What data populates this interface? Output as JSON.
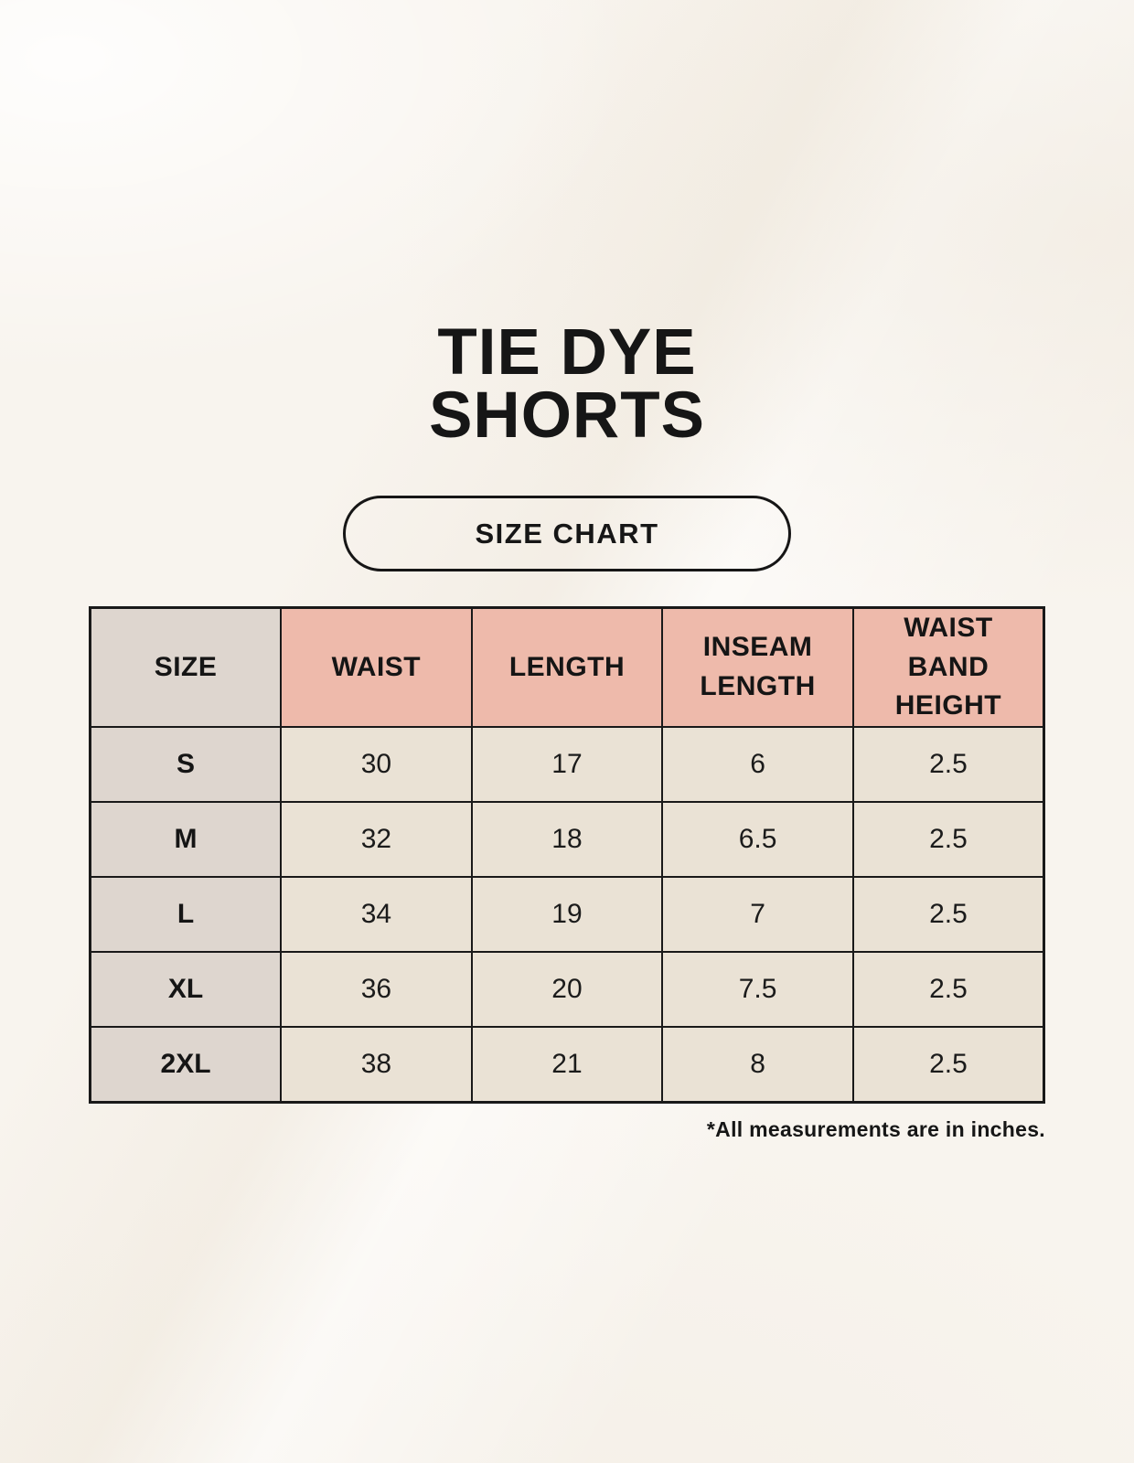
{
  "page": {
    "title": {
      "line1": "TIE DYE",
      "line2": "SHORTS"
    },
    "badge": {
      "label": "SIZE CHART"
    },
    "footnote": "*All measurements are in inches."
  },
  "table": {
    "columns": [
      "SIZE",
      "WAIST",
      "LENGTH",
      "INSEAM LENGTH",
      "WAIST BAND HEIGHT"
    ],
    "rows": [
      [
        "S",
        "30",
        "17",
        "6",
        "2.5"
      ],
      [
        "M",
        "32",
        "18",
        "6.5",
        "2.5"
      ],
      [
        "L",
        "34",
        "19",
        "7",
        "2.5"
      ],
      [
        "XL",
        "36",
        "20",
        "7.5",
        "2.5"
      ],
      [
        "2XL",
        "38",
        "21",
        "8",
        "2.5"
      ]
    ]
  },
  "colors": {
    "background": "#f8f4ee",
    "header_accent": "#eebaab",
    "size_column": "#ded6cf",
    "data_cell": "#eae2d5",
    "border": "#191919",
    "text": "#161616"
  }
}
